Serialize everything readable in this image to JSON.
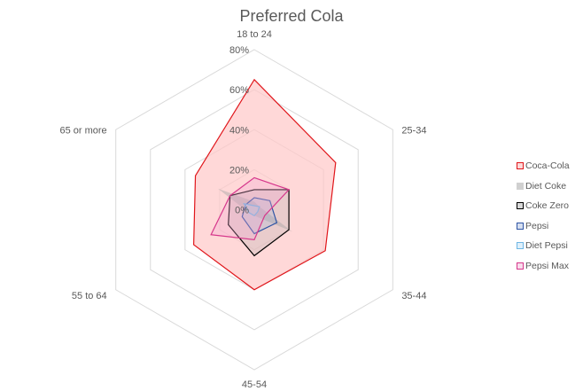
{
  "chart_data": {
    "type": "radar",
    "title": "Preferred Cola",
    "categories": [
      "18 to 24",
      "25-34",
      "35-44",
      "45-54",
      "55 to 64",
      "65 or more"
    ],
    "radial_ticks": [
      "0%",
      "20%",
      "40%",
      "60%",
      "80%"
    ],
    "rmax": 80,
    "legend_position": "right",
    "series": [
      {
        "name": "Coca-Cola",
        "values": [
          65,
          47,
          41,
          40,
          35,
          34
        ],
        "stroke": "#e0161b",
        "fill": "#ffc7c7",
        "fill_opacity": 0.7,
        "swatch_fill": "#fdd9d9"
      },
      {
        "name": "Diet Coke",
        "values": [
          4,
          3,
          22,
          3,
          3,
          21
        ],
        "stroke": "none",
        "fill": "#a6a6a6",
        "fill_opacity": 0.45,
        "swatch_fill": "#d0d0d0"
      },
      {
        "name": "Coke Zero",
        "values": [
          10,
          20,
          20,
          23,
          15,
          14
        ],
        "stroke": "#000000",
        "fill": "#a6a6a6",
        "fill_opacity": 0.25,
        "swatch_fill": "#d9d9d9"
      },
      {
        "name": "Pepsi",
        "values": [
          6,
          9,
          13,
          12,
          7,
          5
        ],
        "stroke": "#2f55a4",
        "fill": "#9db3dd",
        "fill_opacity": 0.25,
        "swatch_fill": "#d6dff0"
      },
      {
        "name": "Diet Pepsi",
        "values": [
          2,
          3,
          2,
          3,
          3,
          6
        ],
        "stroke": "#6fb6e4",
        "fill": "#c9e6f7",
        "fill_opacity": 0.3,
        "swatch_fill": "#dff0fb"
      },
      {
        "name": "Pepsi Max",
        "values": [
          16,
          20,
          6,
          15,
          25,
          14
        ],
        "stroke": "#d6388c",
        "fill": "#f3a6cf",
        "fill_opacity": 0.3,
        "swatch_fill": "#f9dcec"
      }
    ]
  },
  "title": "Preferred Cola",
  "legend": {
    "items": [
      "Coca-Cola",
      "Diet Coke",
      "Coke Zero",
      "Pepsi",
      "Diet Pepsi",
      "Pepsi Max"
    ]
  }
}
